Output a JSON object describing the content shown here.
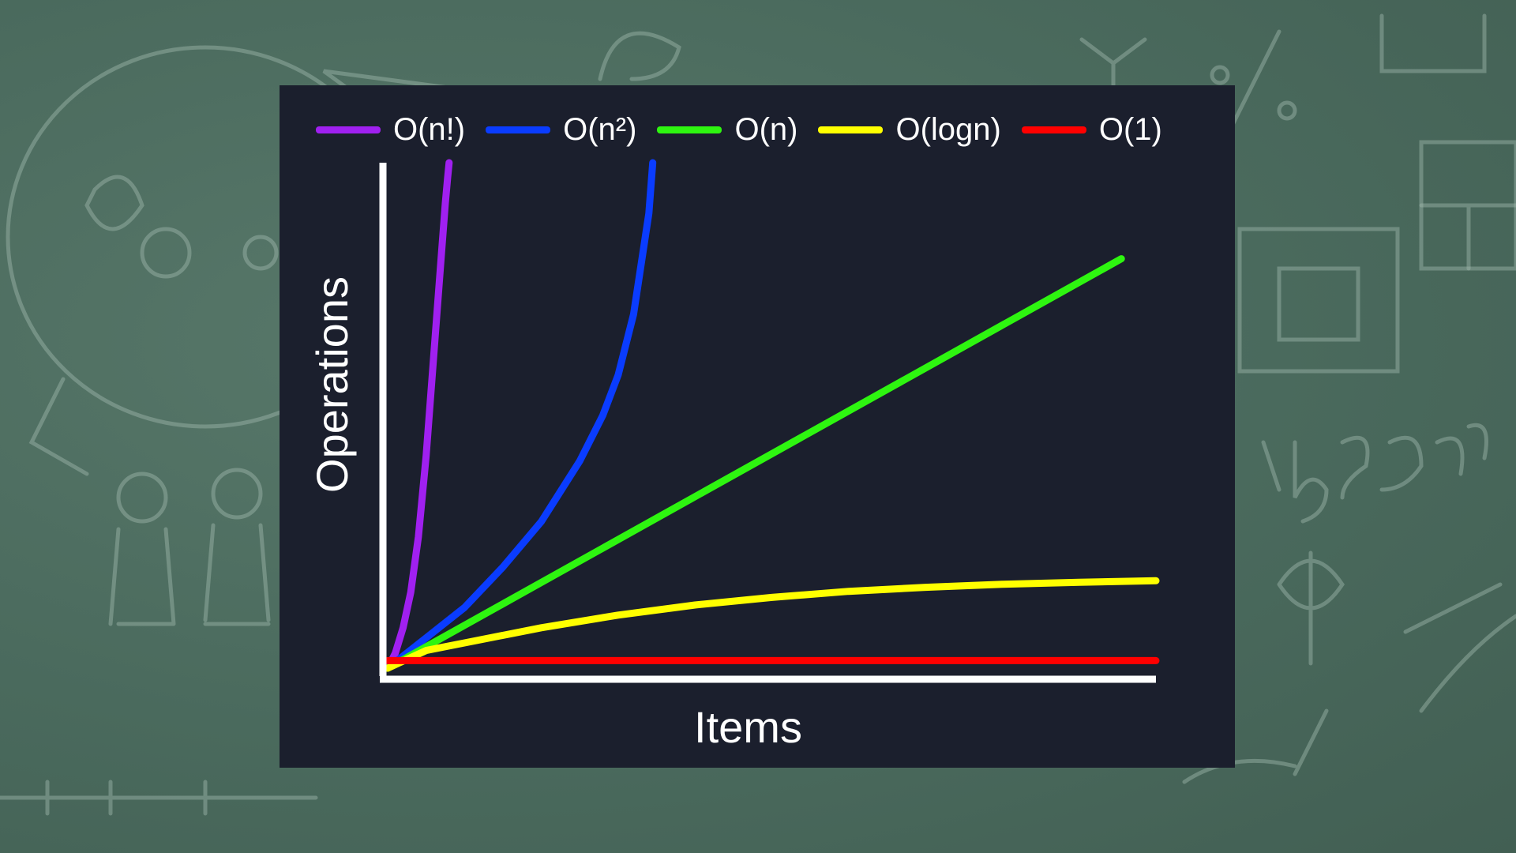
{
  "chart_data": {
    "type": "line",
    "title": "",
    "xlabel": "Items",
    "ylabel": "Operations",
    "xlim": [
      0,
      100
    ],
    "ylim": [
      0,
      100
    ],
    "grid": false,
    "legend_position": "top",
    "series": [
      {
        "name": "O(n!)",
        "color": "#a020f0",
        "x": [
          0,
          1,
          2,
          3,
          4,
          5,
          6,
          7,
          7.5,
          7.8,
          8
        ],
        "y": [
          0,
          3,
          8,
          15,
          26,
          42,
          62,
          82,
          92,
          97,
          100
        ]
      },
      {
        "name": "O(n²)",
        "color": "#0a3cff",
        "x": [
          0,
          5,
          10,
          15,
          20,
          25,
          28,
          30,
          32,
          34,
          34.5
        ],
        "y": [
          0,
          6,
          12,
          20,
          29,
          41,
          50,
          58,
          70,
          90,
          100
        ]
      },
      {
        "name": "O(n)",
        "color": "#2ef510",
        "x": [
          0,
          95.5
        ],
        "y": [
          0,
          81
        ]
      },
      {
        "name": "O(logn)",
        "color": "#ffff00",
        "x": [
          0,
          5,
          10,
          20,
          30,
          40,
          50,
          60,
          70,
          80,
          90,
          100
        ],
        "y": [
          0,
          3.5,
          5,
          8,
          10.5,
          12.5,
          14,
          15.2,
          16,
          16.6,
          17,
          17.3
        ]
      },
      {
        "name": "O(1)",
        "color": "#ff0000",
        "x": [
          0,
          100
        ],
        "y": [
          1.5,
          1.5
        ]
      }
    ]
  }
}
